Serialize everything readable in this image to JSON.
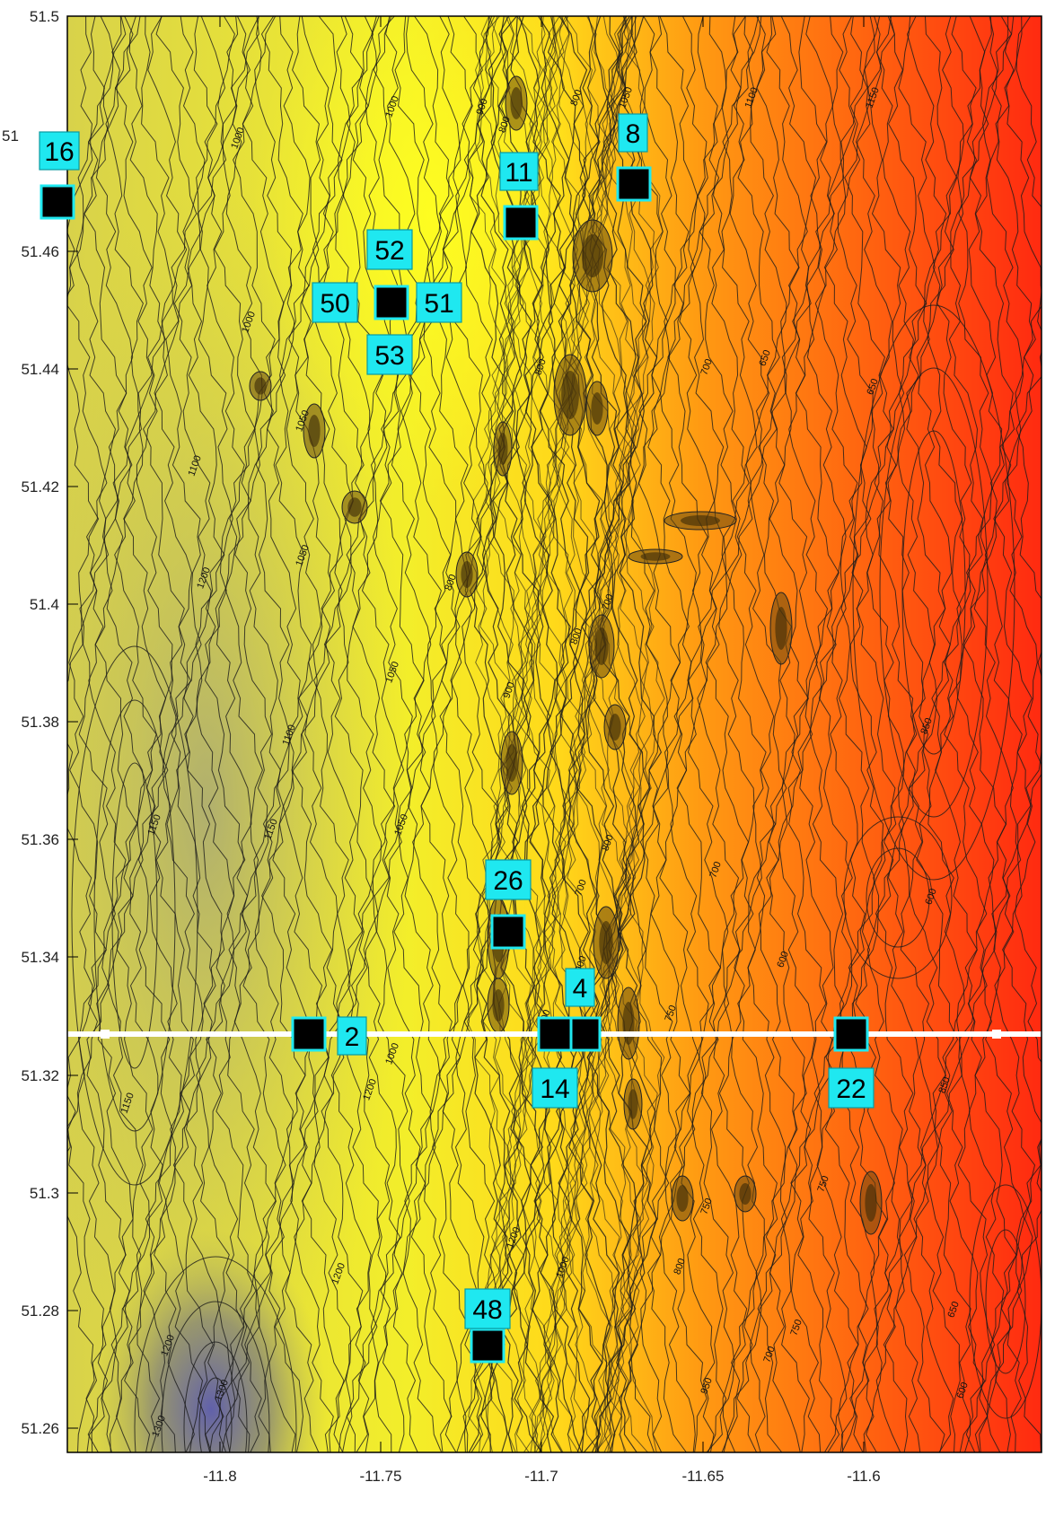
{
  "axes": {
    "x_ticks": [
      "-11.8",
      "-11.75",
      "-11.7",
      "-11.65",
      "-11.6"
    ],
    "y_ticks": [
      "51.5",
      "51.48",
      "51.46",
      "51.44",
      "51.42",
      "51.4",
      "51.38",
      "51.36",
      "51.34",
      "51.32",
      "51.3",
      "51.28",
      "51.26"
    ],
    "y_partial_label": "51"
  },
  "contour_labels": [
    "1000",
    "900",
    "800",
    "1050",
    "1100",
    "1150",
    "1200",
    "1300",
    "700",
    "650",
    "600",
    "850",
    "950",
    "750"
  ],
  "stations": [
    {
      "id": "16"
    },
    {
      "id": "11"
    },
    {
      "id": "8"
    },
    {
      "id": "52"
    },
    {
      "id": "50"
    },
    {
      "id": "51"
    },
    {
      "id": "53"
    },
    {
      "id": "26"
    },
    {
      "id": "4"
    },
    {
      "id": "2"
    },
    {
      "id": "14"
    },
    {
      "id": "22"
    },
    {
      "id": "48"
    }
  ],
  "colors": {
    "deep": "#6a6a9c",
    "mid": "#e8e23a",
    "shallow_yellow": "#ffff22",
    "orange": "#ff9a10",
    "red": "#ff2a10",
    "label_box": "#1fe8f0",
    "marker": "#000000",
    "transect": "#ffffff"
  }
}
